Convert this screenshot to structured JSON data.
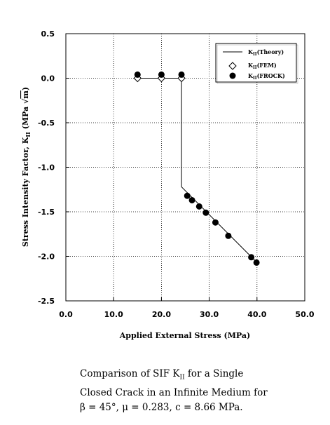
{
  "chart_data": {
    "type": "line",
    "xlabel": "Applied External Stress (MPa)",
    "ylabel": "Stress Intensity Factor, K",
    "ylabel_sub": "II",
    "ylabel_unit": " (MPa ",
    "ylabel_root": "m",
    "ylabel_close": ")",
    "xlim": [
      0,
      50
    ],
    "ylim": [
      -2.5,
      0.5
    ],
    "x_ticks": [
      "0.0",
      "10.0",
      "20.0",
      "30.0",
      "40.0",
      "50.0"
    ],
    "y_ticks": [
      "0.5",
      "0.0",
      "-0.5",
      "-1.0",
      "-1.5",
      "-2.0",
      "-2.5"
    ],
    "grid": true,
    "legend_position": "top-right",
    "series": [
      {
        "name": "K",
        "subscript": "II",
        "suffix": "(Theory)",
        "marker": "line",
        "x": [
          15.0,
          24.2,
          24.2,
          40.0
        ],
        "y": [
          0.0,
          0.0,
          -1.22,
          -2.07
        ]
      },
      {
        "name": "K",
        "subscript": "II",
        "suffix": "(FEM)",
        "marker": "open-diamond",
        "x": [
          15.0,
          20.0,
          24.2
        ],
        "y": [
          0.0,
          0.0,
          0.0
        ]
      },
      {
        "name": "K",
        "subscript": "II",
        "suffix": "(FROCK)",
        "marker": "filled-circle",
        "x": [
          15.0,
          20.0,
          24.2,
          25.4,
          26.4,
          27.9,
          29.3,
          31.3,
          34.0,
          38.8,
          39.9
        ],
        "y": [
          0.04,
          0.04,
          0.04,
          -1.32,
          -1.37,
          -1.44,
          -1.51,
          -1.62,
          -1.77,
          -2.01,
          -2.07
        ]
      }
    ]
  },
  "caption": {
    "line1_a": "Comparison of SIF K",
    "line1_sub": "II",
    "line1_b": " for a Single",
    "line2": "Closed  Crack in an Infinite Medium for",
    "line3": "β = 45°, μ = 0.283, c = 8.66 MPa."
  }
}
